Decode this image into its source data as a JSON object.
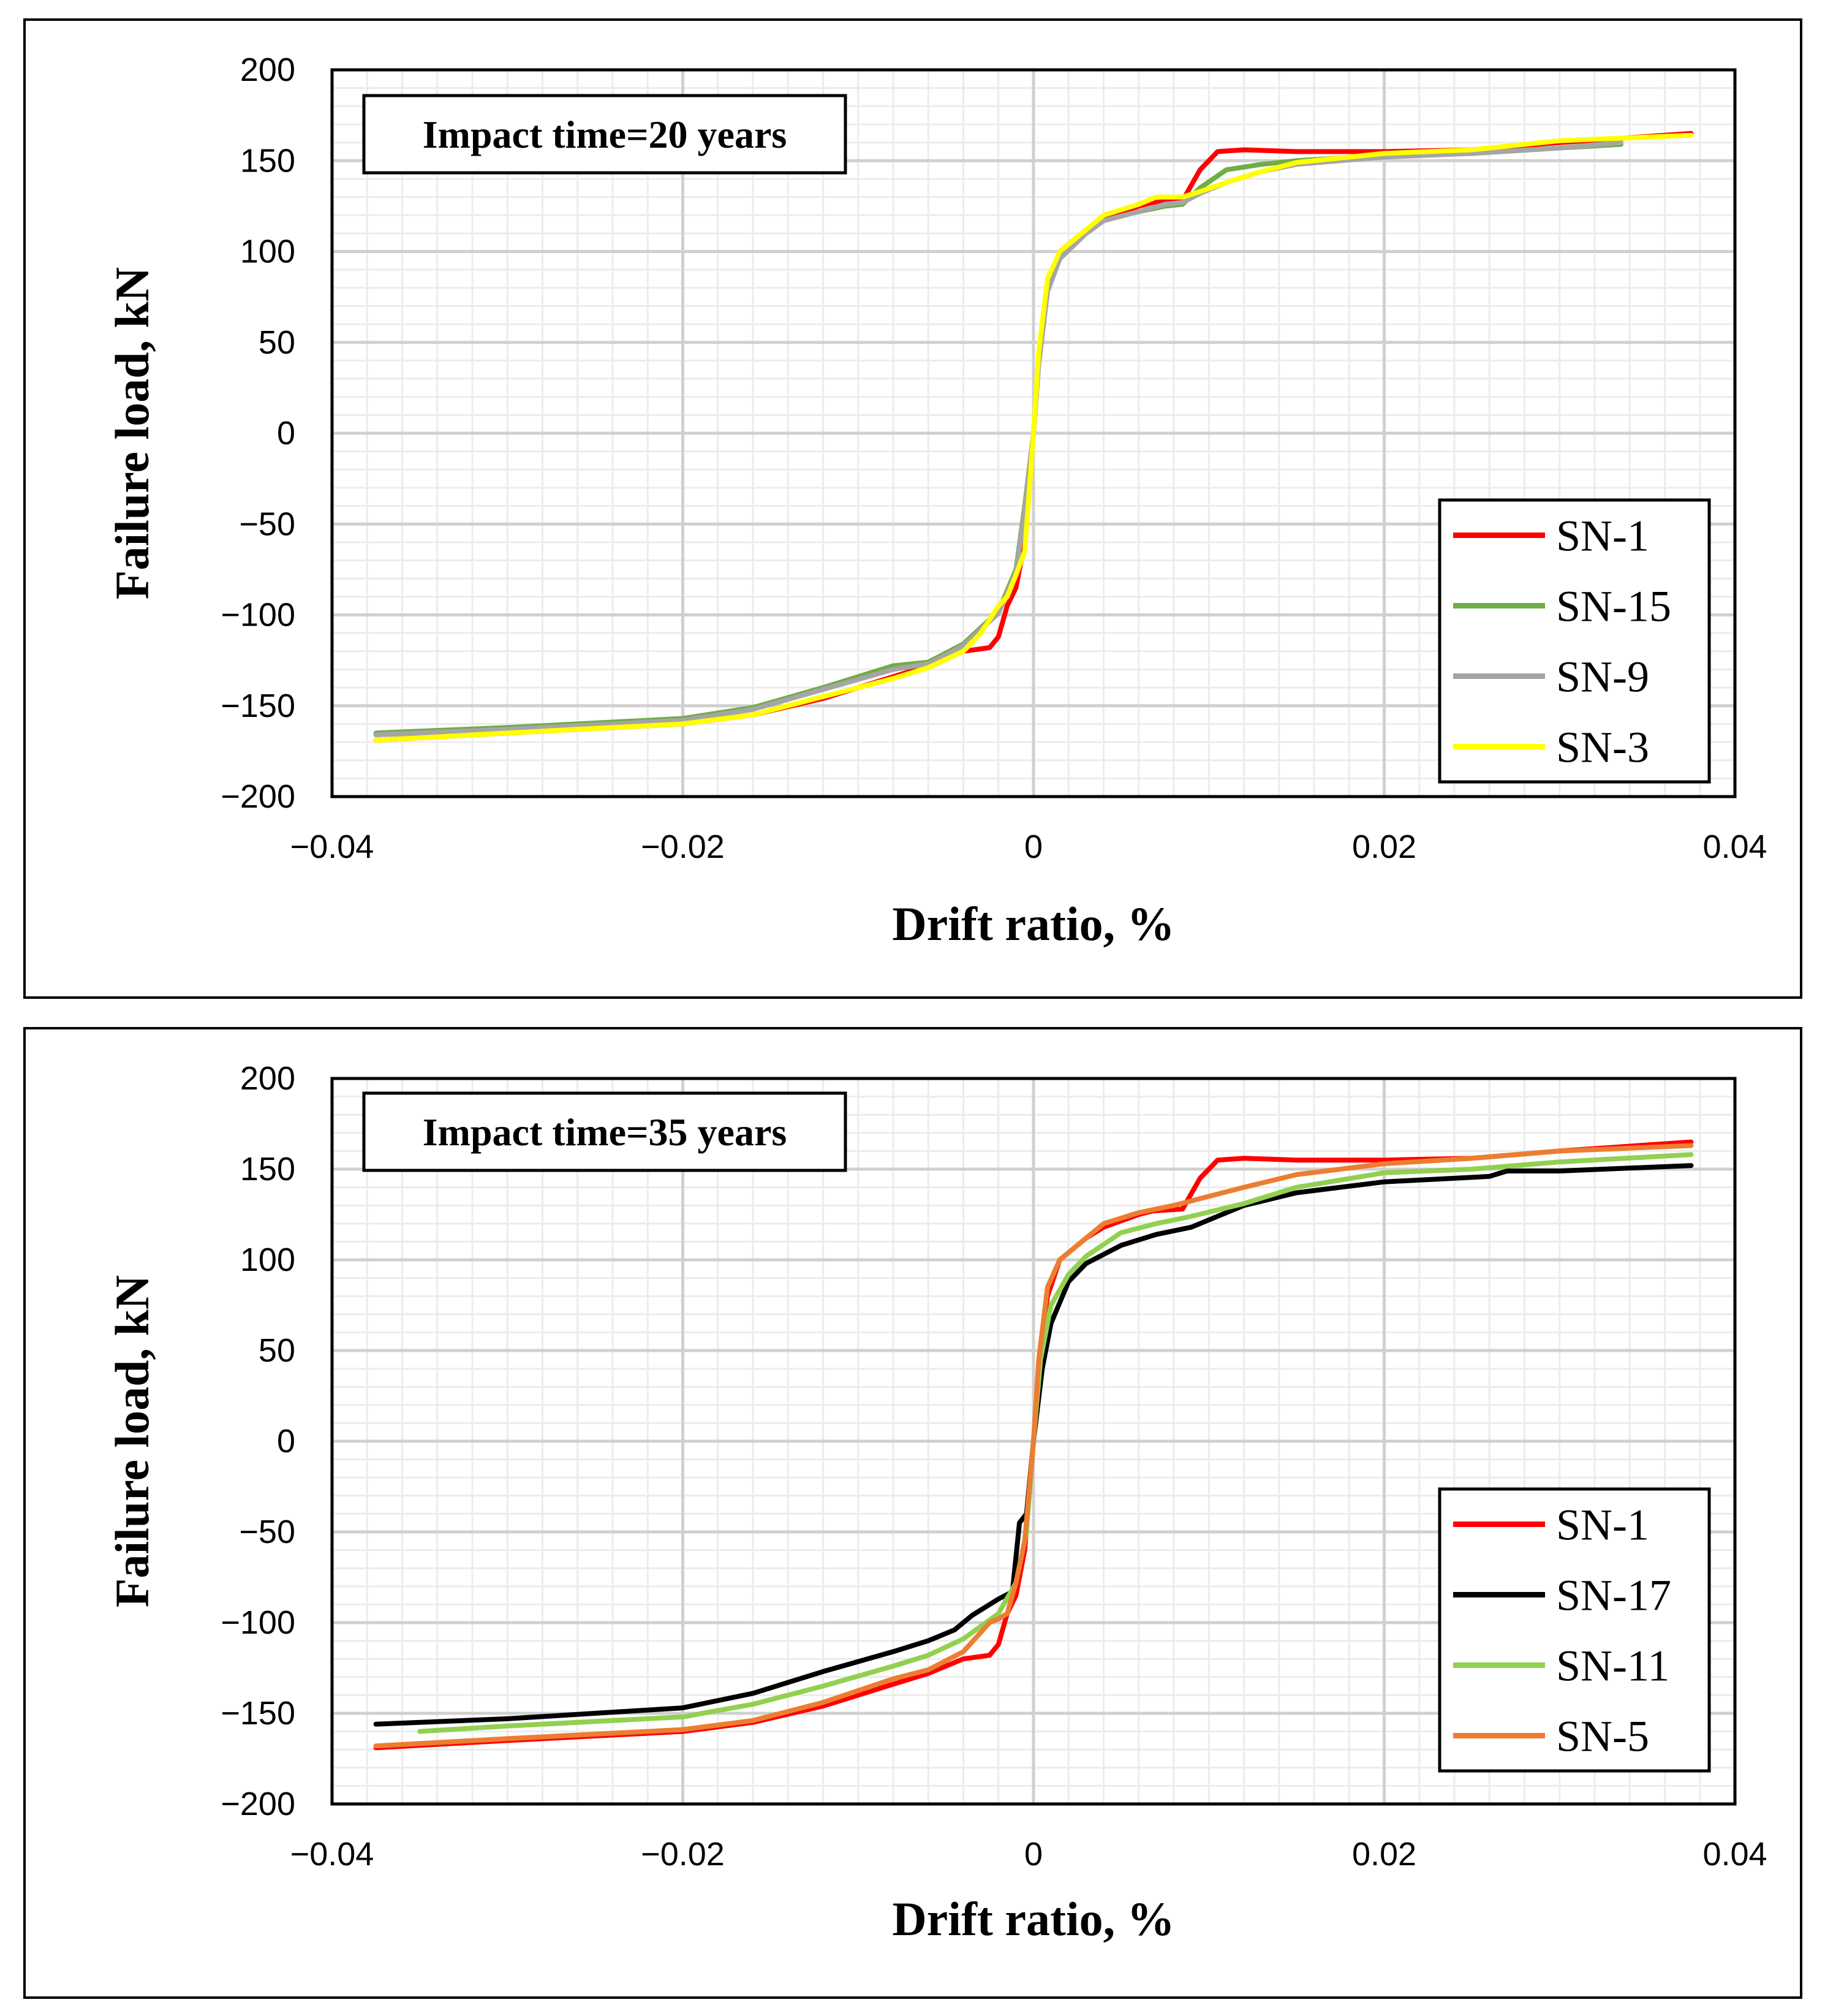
{
  "chart_data": [
    {
      "type": "line",
      "annotation": "Impact time=20 years",
      "xlabel": "Drift ratio, %",
      "ylabel": "Failure load, kN",
      "xlim": [
        -0.04,
        0.04
      ],
      "ylim": [
        -200,
        200
      ],
      "xticks": [
        -0.04,
        -0.02,
        0,
        0.02,
        0.04
      ],
      "xtick_labels": [
        "−0.04",
        "−0.02",
        "0",
        "0.02",
        "0.04"
      ],
      "yticks": [
        200,
        150,
        100,
        50,
        0,
        -50,
        -100,
        -150,
        -200
      ],
      "ytick_labels": [
        "200",
        "150",
        "100",
        "50",
        "0",
        "−50",
        "−100",
        "−150",
        "−200"
      ],
      "grid": true,
      "legend_position": "bottom-right",
      "series": [
        {
          "name": "SN-1",
          "color": "#ff0000",
          "x": [
            -0.0375,
            -0.03,
            -0.02,
            -0.016,
            -0.012,
            -0.008,
            -0.006,
            -0.004,
            -0.0025,
            -0.002,
            -0.0015,
            -0.001,
            -0.0005,
            0,
            0.0003,
            0.0008,
            0.0015,
            0.003,
            0.004,
            0.006,
            0.0068,
            0.0085,
            0.0095,
            0.0105,
            0.012,
            0.015,
            0.02,
            0.025,
            0.03,
            0.0375
          ],
          "y": [
            -169,
            -165,
            -160,
            -155,
            -146,
            -134,
            -128,
            -120,
            -118,
            -112,
            -95,
            -85,
            -60,
            0,
            40,
            80,
            100,
            112,
            118,
            125,
            127,
            128,
            145,
            155,
            156,
            155,
            155,
            156,
            160,
            165
          ]
        },
        {
          "name": "SN-15",
          "color": "#70ad47",
          "x": [
            -0.0375,
            -0.03,
            -0.02,
            -0.016,
            -0.012,
            -0.008,
            -0.006,
            -0.004,
            -0.002,
            -0.001,
            -0.0005,
            0,
            0.0003,
            0.0008,
            0.0015,
            0.003,
            0.004,
            0.006,
            0.0075,
            0.0085,
            0.0095,
            0.011,
            0.013,
            0.015,
            0.02,
            0.025,
            0.03,
            0.0335
          ],
          "y": [
            -165,
            -162,
            -157,
            -151,
            -140,
            -128,
            -126,
            -116,
            -98,
            -75,
            -40,
            0,
            40,
            80,
            98,
            110,
            117,
            122,
            125,
            126,
            135,
            145,
            148,
            150,
            153,
            154,
            157,
            159
          ]
        },
        {
          "name": "SN-9",
          "color": "#a5a5a5",
          "x": [
            -0.0375,
            -0.03,
            -0.02,
            -0.016,
            -0.012,
            -0.008,
            -0.006,
            -0.004,
            -0.002,
            -0.001,
            -0.0005,
            0,
            0.0003,
            0.0008,
            0.0015,
            0.003,
            0.004,
            0.006,
            0.0075,
            0.0085,
            0.0095,
            0.011,
            0.013,
            0.015,
            0.02,
            0.025,
            0.03,
            0.0335
          ],
          "y": [
            -166,
            -163,
            -158,
            -152,
            -141,
            -130,
            -127,
            -117,
            -99,
            -77,
            -42,
            0,
            38,
            78,
            96,
            110,
            117,
            122,
            126,
            127,
            132,
            138,
            144,
            148,
            152,
            154,
            157,
            160
          ]
        },
        {
          "name": "SN-3",
          "color": "#ffff00",
          "x": [
            -0.0375,
            -0.03,
            -0.02,
            -0.016,
            -0.012,
            -0.008,
            -0.006,
            -0.004,
            -0.003,
            -0.002,
            -0.0015,
            -0.001,
            -0.0005,
            0,
            0.0003,
            0.0008,
            0.0015,
            0.003,
            0.004,
            0.006,
            0.007,
            0.0085,
            0.0095,
            0.011,
            0.013,
            0.015,
            0.02,
            0.025,
            0.03,
            0.0375
          ],
          "y": [
            -169,
            -165,
            -160,
            -155,
            -145,
            -135,
            -129,
            -120,
            -110,
            -95,
            -90,
            -78,
            -65,
            0,
            45,
            85,
            100,
            112,
            120,
            126,
            130,
            130,
            133,
            138,
            144,
            149,
            154,
            156,
            161,
            164
          ]
        }
      ]
    },
    {
      "type": "line",
      "annotation": "Impact time=35 years",
      "xlabel": "Drift ratio, %",
      "ylabel": "Failure load, kN",
      "xlim": [
        -0.04,
        0.04
      ],
      "ylim": [
        -200,
        200
      ],
      "xticks": [
        -0.04,
        -0.02,
        0,
        0.02,
        0.04
      ],
      "xtick_labels": [
        "−0.04",
        "−0.02",
        "0",
        "0.02",
        "0.04"
      ],
      "yticks": [
        200,
        150,
        100,
        50,
        0,
        -50,
        -100,
        -150,
        -200
      ],
      "ytick_labels": [
        "200",
        "150",
        "100",
        "50",
        "0",
        "−50",
        "−100",
        "−150",
        "−200"
      ],
      "grid": true,
      "legend_position": "bottom-right",
      "series": [
        {
          "name": "SN-1",
          "color": "#ff0000",
          "x": [
            -0.0375,
            -0.03,
            -0.02,
            -0.016,
            -0.012,
            -0.008,
            -0.006,
            -0.004,
            -0.0025,
            -0.002,
            -0.0015,
            -0.001,
            -0.0005,
            0,
            0.0003,
            0.0008,
            0.0015,
            0.003,
            0.004,
            0.006,
            0.0068,
            0.0085,
            0.0095,
            0.0105,
            0.012,
            0.015,
            0.02,
            0.025,
            0.03,
            0.0375
          ],
          "y": [
            -169,
            -165,
            -160,
            -155,
            -146,
            -134,
            -128,
            -120,
            -118,
            -112,
            -95,
            -85,
            -60,
            0,
            40,
            80,
            100,
            112,
            118,
            125,
            127,
            128,
            145,
            155,
            156,
            155,
            155,
            156,
            160,
            165
          ]
        },
        {
          "name": "SN-17",
          "color": "#000000",
          "x": [
            -0.0375,
            -0.03,
            -0.02,
            -0.016,
            -0.012,
            -0.008,
            -0.006,
            -0.0045,
            -0.0035,
            -0.002,
            -0.0012,
            -0.0008,
            -0.0004,
            0,
            0.0005,
            0.001,
            0.002,
            0.003,
            0.005,
            0.007,
            0.009,
            0.012,
            0.015,
            0.02,
            0.026,
            0.027,
            0.03,
            0.0375
          ],
          "y": [
            -156,
            -153,
            -147,
            -139,
            -127,
            -116,
            -110,
            -104,
            -96,
            -87,
            -83,
            -45,
            -40,
            0,
            40,
            65,
            88,
            98,
            108,
            114,
            118,
            130,
            137,
            143,
            146,
            149,
            149,
            152
          ]
        },
        {
          "name": "SN-11",
          "color": "#92d050",
          "x": [
            -0.035,
            -0.03,
            -0.02,
            -0.016,
            -0.012,
            -0.008,
            -0.006,
            -0.004,
            -0.002,
            -0.001,
            -0.0004,
            0,
            0.0004,
            0.001,
            0.002,
            0.003,
            0.005,
            0.007,
            0.009,
            0.012,
            0.015,
            0.02,
            0.025,
            0.03,
            0.0375
          ],
          "y": [
            -160,
            -157,
            -152,
            -145,
            -135,
            -124,
            -118,
            -109,
            -95,
            -78,
            -50,
            0,
            45,
            75,
            92,
            102,
            115,
            120,
            124,
            131,
            140,
            148,
            150,
            154,
            158
          ]
        },
        {
          "name": "SN-5",
          "color": "#ed7d31",
          "x": [
            -0.0375,
            -0.03,
            -0.02,
            -0.016,
            -0.012,
            -0.008,
            -0.006,
            -0.004,
            -0.0025,
            -0.002,
            -0.0015,
            -0.001,
            -0.0005,
            0,
            0.0003,
            0.0008,
            0.0015,
            0.003,
            0.004,
            0.006,
            0.008,
            0.01,
            0.012,
            0.015,
            0.02,
            0.025,
            0.03,
            0.0375
          ],
          "y": [
            -168,
            -164,
            -159,
            -154,
            -144,
            -131,
            -126,
            -116,
            -100,
            -98,
            -95,
            -78,
            -55,
            0,
            45,
            85,
            100,
            112,
            120,
            126,
            130,
            135,
            140,
            147,
            153,
            156,
            160,
            163
          ]
        }
      ]
    }
  ]
}
